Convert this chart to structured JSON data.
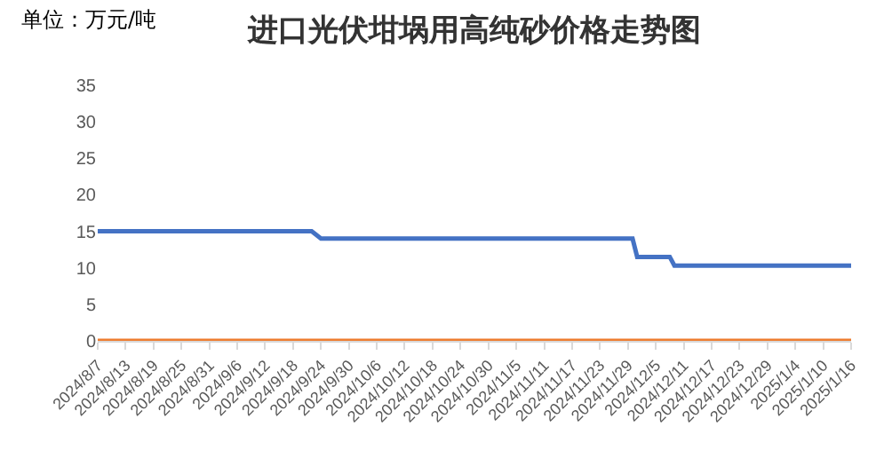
{
  "chart_data": {
    "type": "line",
    "title": "进口光伏坩埚用高纯砂价格走势图",
    "annotations": [
      "单位：万元/吨"
    ],
    "x": [
      "2024-08-07",
      "2024-09-22",
      "2024-09-24",
      "2024-11-30",
      "2024-12-01",
      "2024-12-08",
      "2024-12-09",
      "2025-01-16"
    ],
    "series": [
      {
        "color": "#4472c4",
        "values": [
          15,
          15,
          14,
          14,
          11.5,
          11.5,
          10.3,
          10.3
        ]
      },
      {
        "color": "#ed7d31",
        "values": [
          0,
          0,
          0,
          0,
          0,
          0,
          0,
          0
        ]
      }
    ],
    "xlim": [
      "2024-08-07",
      "2025-01-16"
    ],
    "xticks": [
      {
        "value": "2024-08-07",
        "label": "2024/8/7"
      },
      {
        "value": "2024-08-13",
        "label": "2024/8/13"
      },
      {
        "value": "2024-08-19",
        "label": "2024/8/19"
      },
      {
        "value": "2024-08-25",
        "label": "2024/8/25"
      },
      {
        "value": "2024-08-31",
        "label": "2024/8/31"
      },
      {
        "value": "2024-09-06",
        "label": "2024/9/6"
      },
      {
        "value": "2024-09-12",
        "label": "2024/9/12"
      },
      {
        "value": "2024-09-18",
        "label": "2024/9/18"
      },
      {
        "value": "2024-09-24",
        "label": "2024/9/24"
      },
      {
        "value": "2024-09-30",
        "label": "2024/9/30"
      },
      {
        "value": "2024-10-06",
        "label": "2024/10/6"
      },
      {
        "value": "2024-10-12",
        "label": "2024/10/12"
      },
      {
        "value": "2024-10-18",
        "label": "2024/10/18"
      },
      {
        "value": "2024-10-24",
        "label": "2024/10/24"
      },
      {
        "value": "2024-10-30",
        "label": "2024/10/30"
      },
      {
        "value": "2024-11-05",
        "label": "2024/11/5"
      },
      {
        "value": "2024-11-11",
        "label": "2024/11/11"
      },
      {
        "value": "2024-11-17",
        "label": "2024/11/17"
      },
      {
        "value": "2024-11-23",
        "label": "2024/11/23"
      },
      {
        "value": "2024-11-29",
        "label": "2024/11/29"
      },
      {
        "value": "2024-12-05",
        "label": "2024/12/5"
      },
      {
        "value": "2024-12-11",
        "label": "2024/12/11"
      },
      {
        "value": "2024-12-17",
        "label": "2024/12/17"
      },
      {
        "value": "2024-12-23",
        "label": "2024/12/23"
      },
      {
        "value": "2024-12-29",
        "label": "2024/12/29"
      },
      {
        "value": "2025-01-04",
        "label": "2025/1/4"
      },
      {
        "value": "2025-01-10",
        "label": "2025/1/10"
      },
      {
        "value": "2025-01-16",
        "label": "2025/1/16"
      }
    ],
    "ylim": [
      0,
      35
    ],
    "yticks": [
      0,
      5,
      10,
      15,
      20,
      25,
      30,
      35
    ],
    "grid": false,
    "marker": "none",
    "line_style": "solid"
  }
}
